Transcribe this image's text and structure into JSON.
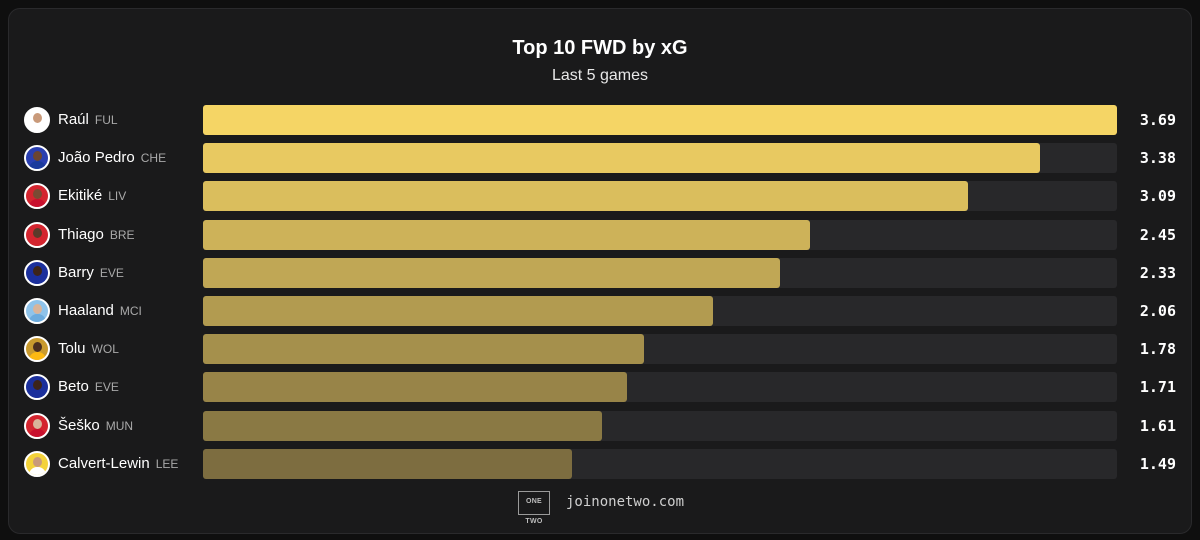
{
  "chart_data": {
    "type": "bar",
    "orientation": "horizontal",
    "title": "Top 10 FWD by xG",
    "subtitle": "Last 5 games",
    "categories": [
      "Raúl",
      "João Pedro",
      "Ekitiké",
      "Thiago",
      "Barry",
      "Haaland",
      "Tolu",
      "Beto",
      "Šeško",
      "Calvert-Lewin"
    ],
    "teams": [
      "FUL",
      "CHE",
      "LIV",
      "BRE",
      "EVE",
      "MCI",
      "WOL",
      "EVE",
      "MUN",
      "LEE"
    ],
    "values": [
      3.69,
      3.38,
      3.09,
      2.45,
      2.33,
      2.06,
      1.78,
      1.71,
      1.61,
      1.49
    ],
    "value_labels": [
      "3.69",
      "3.38",
      "3.09",
      "2.45",
      "2.33",
      "2.06",
      "1.78",
      "1.71",
      "1.61",
      "1.49"
    ],
    "xlim": [
      0,
      3.69
    ],
    "grid": false,
    "legend": "none",
    "bar_color_top": "#f5d565",
    "bar_color_bottom": "#7d6d40",
    "track_color": "#28282a"
  },
  "avatars": [
    {
      "icon": "player-avatar-icon",
      "kit": "#ffffff",
      "ring": "#ffffff",
      "skin": "#c99a7a"
    },
    {
      "icon": "player-avatar-icon",
      "kit": "#1b3a9c",
      "ring": "#2a3fb0",
      "skin": "#6b4530"
    },
    {
      "icon": "player-avatar-icon",
      "kit": "#c8102e",
      "ring": "#d4252f",
      "skin": "#7a4a33"
    },
    {
      "icon": "player-avatar-icon",
      "kit": "#d4252f",
      "ring": "#d4252f",
      "skin": "#5a3a2a"
    },
    {
      "icon": "player-avatar-icon",
      "kit": "#1b2f9c",
      "ring": "#1b2f9c",
      "skin": "#3d2418"
    },
    {
      "icon": "player-avatar-icon",
      "kit": "#6cabdd",
      "ring": "#8fc3ea",
      "skin": "#d9b49a"
    },
    {
      "icon": "player-avatar-icon",
      "kit": "#fdb913",
      "ring": "#c99a2e",
      "skin": "#4a2e20"
    },
    {
      "icon": "player-avatar-icon",
      "kit": "#1b2f9c",
      "ring": "#1b2f9c",
      "skin": "#3d2418"
    },
    {
      "icon": "player-avatar-icon",
      "kit": "#c8102e",
      "ring": "#d4252f",
      "skin": "#d9b49a"
    },
    {
      "icon": "player-avatar-icon",
      "kit": "#ffffff",
      "ring": "#f3d23a",
      "skin": "#c99a7a"
    }
  ],
  "footer": {
    "logo_text": "ONE TWO",
    "site": "joinonetwo.com"
  }
}
